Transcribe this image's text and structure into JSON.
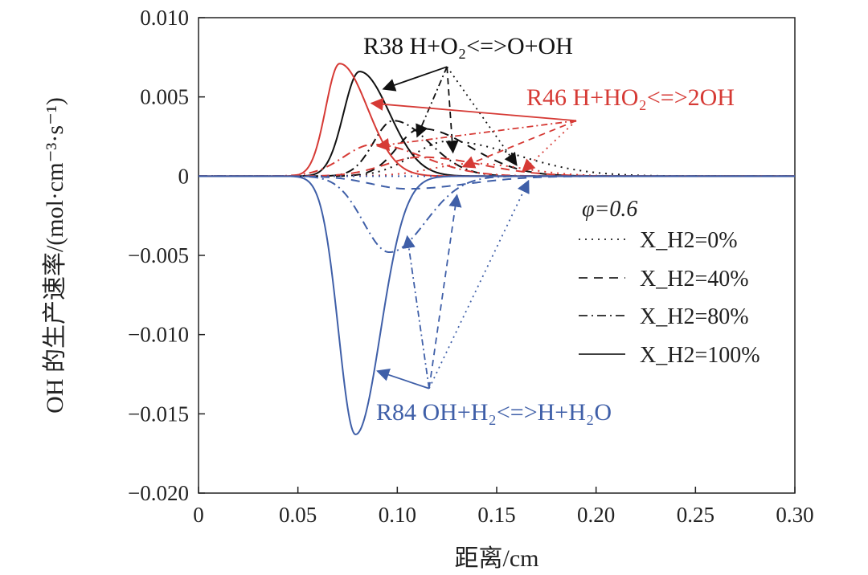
{
  "chart_data": {
    "type": "line",
    "xlabel": "距离/cm",
    "ylabel": "OH 的生产速率/(mol·cm⁻³·s⁻¹)",
    "xlim": [
      0,
      0.3
    ],
    "ylim": [
      -0.02,
      0.01
    ],
    "x_ticks": [
      "0",
      "0.05",
      "0.10",
      "0.15",
      "0.20",
      "0.25",
      "0.30"
    ],
    "y_ticks": [
      "0.010",
      "0.005",
      "0",
      "−0.005",
      "−0.010",
      "−0.015",
      "−0.020"
    ],
    "legend_location": "right-middle",
    "legend_title": "φ=0.6",
    "legend": [
      {
        "label": "X_H2=0%",
        "dash": "dotted"
      },
      {
        "label": "X_H2=40%",
        "dash": "dashed"
      },
      {
        "label": "X_H2=80%",
        "dash": "dashdot"
      },
      {
        "label": "X_H2=100%",
        "dash": "solid"
      }
    ],
    "colors": {
      "R38": "#111111",
      "R46": "#d63a35",
      "R84": "#3f5fa8"
    },
    "annotations": [
      {
        "reaction": "R38",
        "text": "R38 H+O₂<=>O+OH",
        "color": "#111111"
      },
      {
        "reaction": "R46",
        "text": "R46 H+HO₂<=>2OH",
        "color": "#d63a35"
      },
      {
        "reaction": "R84",
        "text": "R84 OH+H₂<=>H+H₂O",
        "color": "#3f5fa8"
      }
    ],
    "series": [
      {
        "reaction": "R38",
        "x_h2": "0%",
        "peak_x": 0.125,
        "peak_y": 0.0022,
        "sigma_left": 0.017,
        "sigma_right": 0.035
      },
      {
        "reaction": "R38",
        "x_h2": "40%",
        "peak_x": 0.112,
        "peak_y": 0.003,
        "sigma_left": 0.012,
        "sigma_right": 0.025
      },
      {
        "reaction": "R38",
        "x_h2": "80%",
        "peak_x": 0.098,
        "peak_y": 0.0035,
        "sigma_left": 0.01,
        "sigma_right": 0.018
      },
      {
        "reaction": "R38",
        "x_h2": "100%",
        "peak_x": 0.081,
        "peak_y": 0.0066,
        "sigma_left": 0.008,
        "sigma_right": 0.015
      },
      {
        "reaction": "R46",
        "x_h2": "0%",
        "peak_x": 0.138,
        "peak_y": 0.0008,
        "sigma_left": 0.02,
        "sigma_right": 0.025
      },
      {
        "reaction": "R46",
        "x_h2": "40%",
        "peak_x": 0.112,
        "peak_y": 0.0012,
        "sigma_left": 0.018,
        "sigma_right": 0.03
      },
      {
        "reaction": "R46",
        "x_h2": "80%",
        "peak_x": 0.088,
        "peak_y": 0.002,
        "sigma_left": 0.015,
        "sigma_right": 0.025
      },
      {
        "reaction": "R46",
        "x_h2": "100%",
        "peak_x": 0.071,
        "peak_y": 0.0071,
        "sigma_left": 0.007,
        "sigma_right": 0.014
      },
      {
        "reaction": "R84",
        "x_h2": "0%",
        "peak_x": 0.165,
        "peak_y": 0.0,
        "sigma_left": 0.01,
        "sigma_right": 0.01
      },
      {
        "reaction": "R84",
        "x_h2": "40%",
        "peak_x": 0.105,
        "peak_y": -0.0008,
        "sigma_left": 0.018,
        "sigma_right": 0.03
      },
      {
        "reaction": "R84",
        "x_h2": "80%",
        "peak_x": 0.096,
        "peak_y": -0.0048,
        "sigma_left": 0.013,
        "sigma_right": 0.018
      },
      {
        "reaction": "R84",
        "x_h2": "100%",
        "peak_x": 0.079,
        "peak_y": -0.0163,
        "sigma_left": 0.0085,
        "sigma_right": 0.0125
      }
    ]
  }
}
